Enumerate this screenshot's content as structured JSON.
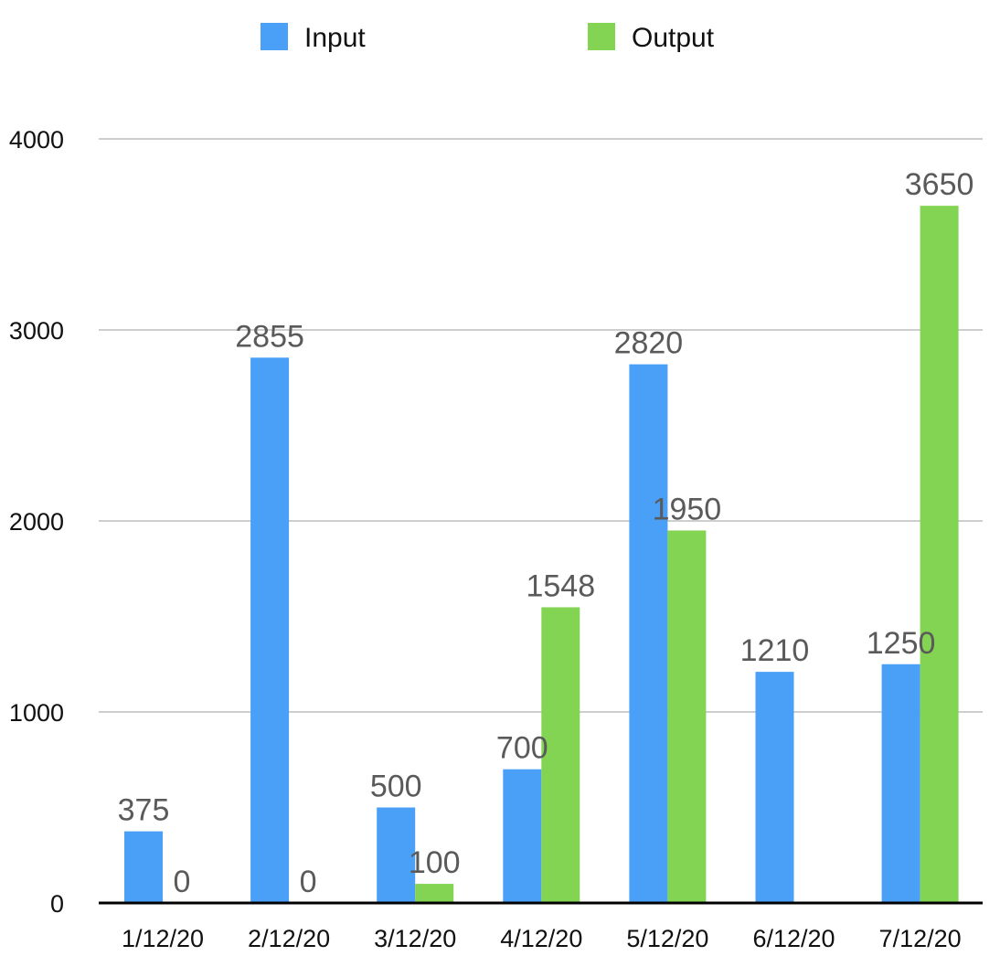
{
  "chart_data": {
    "type": "bar",
    "categories": [
      "1/12/20",
      "2/12/20",
      "3/12/20",
      "4/12/20",
      "5/12/20",
      "6/12/20",
      "7/12/20"
    ],
    "series": [
      {
        "name": "Input",
        "color": "#4aa0f7",
        "values": [
          375,
          2855,
          500,
          700,
          2820,
          1210,
          1250
        ],
        "labels": [
          "375",
          "2855",
          "500",
          "700",
          "2820",
          "1210",
          "1250"
        ]
      },
      {
        "name": "Output",
        "color": "#82d452",
        "values": [
          0,
          0,
          100,
          1548,
          1950,
          null,
          3650
        ],
        "labels": [
          "0",
          "0",
          "100",
          "1548",
          "1950",
          null,
          "3650"
        ]
      }
    ],
    "yticks": [
      "0",
      "1000",
      "2000",
      "3000",
      "4000"
    ],
    "ylim": [
      0,
      4000
    ],
    "grid": true,
    "legend_position": "top"
  }
}
